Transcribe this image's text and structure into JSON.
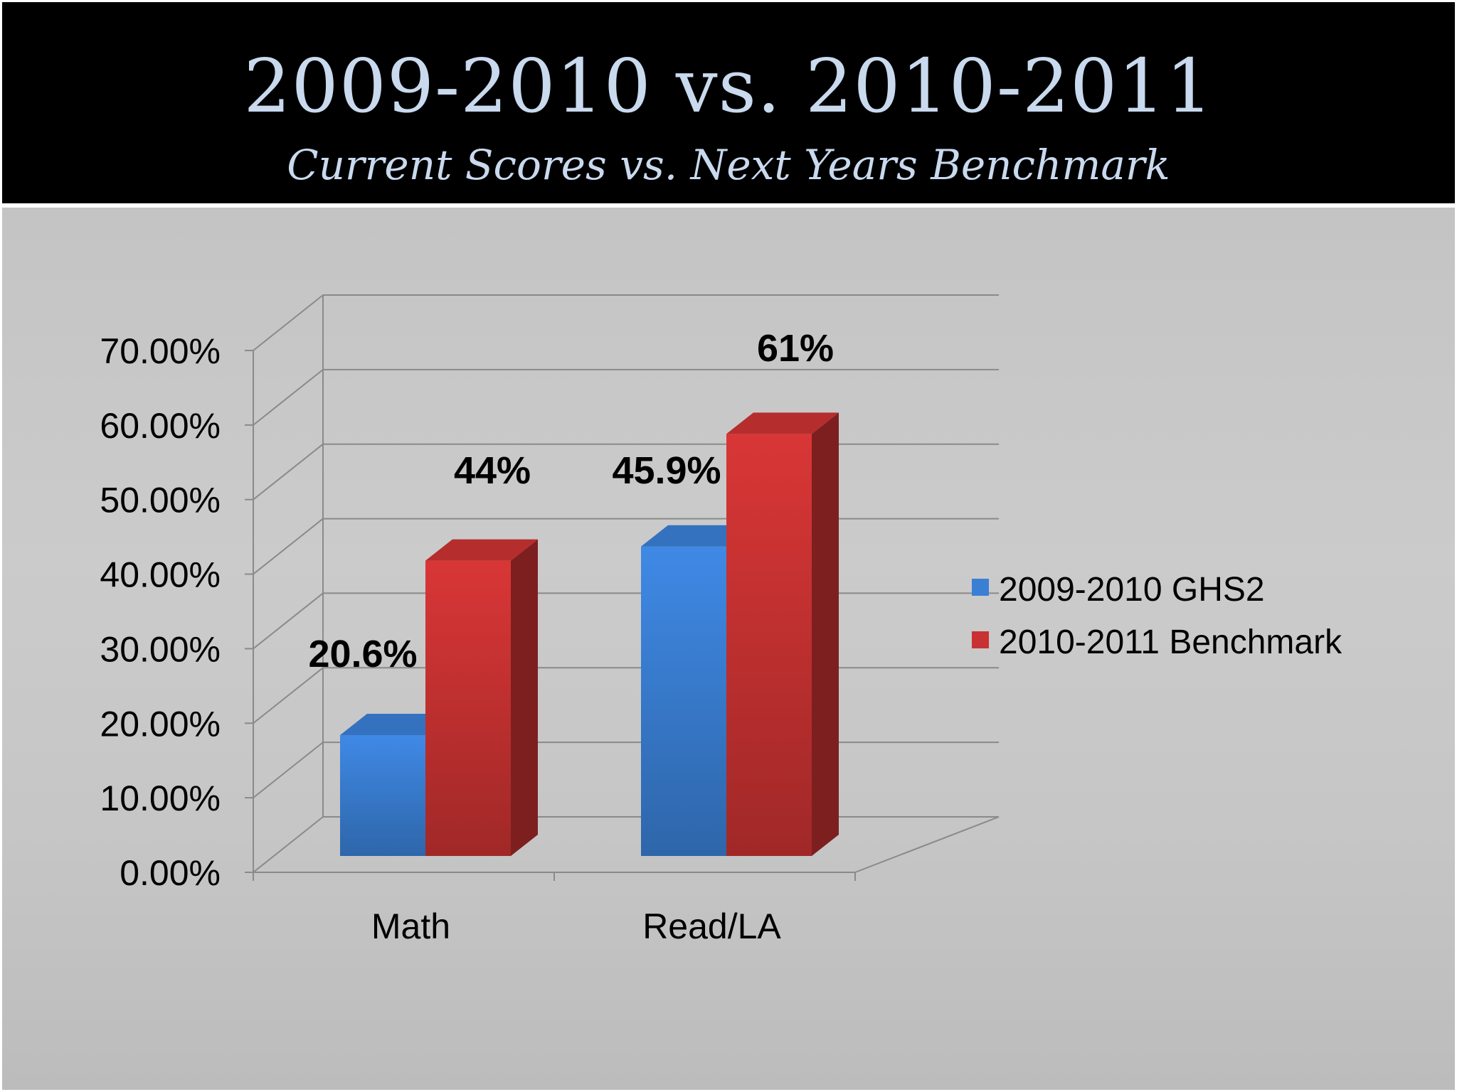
{
  "header": {
    "title": "2009-2010 vs. 2010-2011",
    "subtitle": "Current Scores vs. Next Years Benchmark"
  },
  "colors": {
    "header_bg": "#000000",
    "header_text": "#c9d9ee",
    "series_blue": "#3a7fd4",
    "series_red": "#c93232"
  },
  "chart_data": {
    "type": "bar",
    "categories": [
      "Math",
      "Read/LA"
    ],
    "series": [
      {
        "name": "2009-2010 GHS2",
        "values": [
          20.6,
          45.9
        ],
        "labels": [
          "20.6%",
          "45.9%"
        ],
        "color": "#3a7fd4"
      },
      {
        "name": "2010-2011 Benchmark",
        "values": [
          44,
          61
        ],
        "labels": [
          "44%",
          "61%"
        ],
        "color": "#c93232"
      }
    ],
    "yticks": [
      "0.00%",
      "10.00%",
      "20.00%",
      "30.00%",
      "40.00%",
      "50.00%",
      "60.00%",
      "70.00%"
    ],
    "ylim": [
      0,
      70
    ],
    "grid": true,
    "legend": "right",
    "style": "3d"
  }
}
